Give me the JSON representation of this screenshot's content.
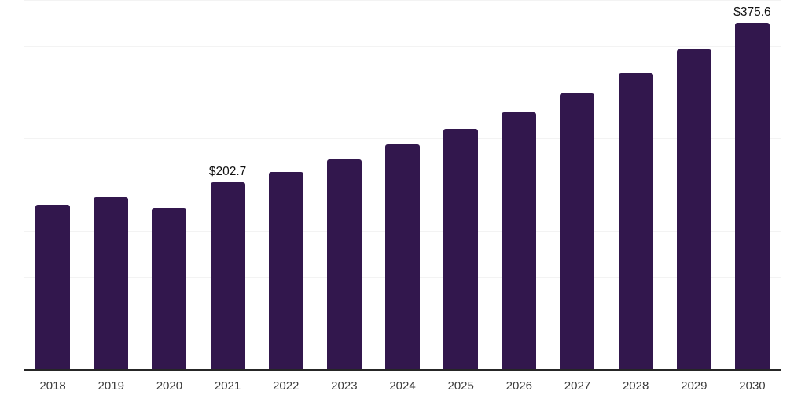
{
  "chart_data": {
    "type": "bar",
    "title": "",
    "xlabel": "",
    "ylabel": "",
    "categories": [
      "2018",
      "2019",
      "2020",
      "2021",
      "2022",
      "2023",
      "2024",
      "2025",
      "2026",
      "2027",
      "2028",
      "2029",
      "2030"
    ],
    "values": [
      178.0,
      186.5,
      174.5,
      202.7,
      214.0,
      227.5,
      243.0,
      260.5,
      278.5,
      299.0,
      321.0,
      346.5,
      375.6
    ],
    "data_labels": {
      "2021": "$202.7",
      "2030": "$375.6"
    },
    "ylim": [
      0,
      400
    ],
    "gridline_step": 50,
    "grid": true,
    "legend": false,
    "y_tick_labels_visible": false,
    "colors": {
      "bar": "#32174d",
      "gridline": "#f3f3f3",
      "axis_line": "#262626",
      "tick_label": "#3d3d3d",
      "data_label": "#111111",
      "background": "#ffffff"
    }
  }
}
